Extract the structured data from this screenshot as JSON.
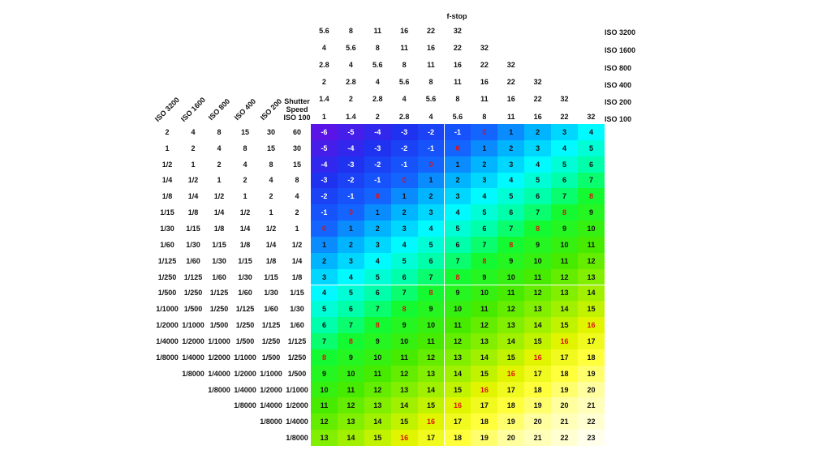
{
  "top": {
    "title": "f-stop",
    "rows": [
      {
        "label": "ISO 3200",
        "values": [
          "5.6",
          "8",
          "11",
          "16",
          "22",
          "32"
        ]
      },
      {
        "label": "ISO 1600",
        "values": [
          "4",
          "5.6",
          "8",
          "11",
          "16",
          "22",
          "32"
        ]
      },
      {
        "label": "ISO 800",
        "values": [
          "2.8",
          "4",
          "5.6",
          "8",
          "11",
          "16",
          "22",
          "32"
        ]
      },
      {
        "label": "ISO 400",
        "values": [
          "2",
          "2.8",
          "4",
          "5.6",
          "8",
          "11",
          "16",
          "22",
          "32"
        ]
      },
      {
        "label": "ISO 200",
        "values": [
          "1.4",
          "2",
          "2.8",
          "4",
          "5.6",
          "8",
          "11",
          "16",
          "22",
          "32"
        ]
      },
      {
        "label": "ISO 100",
        "values": [
          "1",
          "1.4",
          "2",
          "2.8",
          "4",
          "5.6",
          "8",
          "11",
          "16",
          "22",
          "32"
        ]
      }
    ]
  },
  "shutter": {
    "columns": [
      {
        "label": "ISO 3200",
        "values": [
          "2",
          "1",
          "1/2",
          "1/4",
          "1/8",
          "1/15",
          "1/30",
          "1/60",
          "1/125",
          "1/250",
          "1/500",
          "1/1000",
          "1/2000",
          "1/4000",
          "1/8000"
        ]
      },
      {
        "label": "ISO 1600",
        "values": [
          "4",
          "2",
          "1",
          "1/2",
          "1/4",
          "1/8",
          "1/15",
          "1/30",
          "1/60",
          "1/125",
          "1/250",
          "1/500",
          "1/1000",
          "1/2000",
          "1/4000",
          "1/8000"
        ]
      },
      {
        "label": "ISO 800",
        "values": [
          "8",
          "4",
          "2",
          "1",
          "1/2",
          "1/4",
          "1/8",
          "1/15",
          "1/30",
          "1/60",
          "1/125",
          "1/250",
          "1/500",
          "1/1000",
          "1/2000",
          "1/4000",
          "1/8000"
        ]
      },
      {
        "label": "ISO 400",
        "values": [
          "15",
          "8",
          "4",
          "2",
          "1",
          "1/2",
          "1/4",
          "1/8",
          "1/15",
          "1/30",
          "1/60",
          "1/125",
          "1/250",
          "1/500",
          "1/1000",
          "1/2000",
          "1/4000",
          "1/8000"
        ]
      },
      {
        "label": "ISO 200",
        "values": [
          "30",
          "15",
          "8",
          "4",
          "2",
          "1",
          "1/2",
          "1/4",
          "1/8",
          "1/15",
          "1/30",
          "1/60",
          "1/125",
          "1/250",
          "1/500",
          "1/1000",
          "1/2000",
          "1/4000",
          "1/8000"
        ]
      },
      {
        "label": "Shutter Speed ISO 100",
        "values": [
          "60",
          "30",
          "15",
          "8",
          "4",
          "2",
          "1",
          "1/2",
          "1/4",
          "1/8",
          "1/15",
          "1/30",
          "1/60",
          "1/125",
          "1/250",
          "1/500",
          "1/1000",
          "1/2000",
          "1/4000",
          "1/8000"
        ]
      }
    ]
  },
  "grid": {
    "highlight": {
      "values": [
        0,
        8,
        16
      ],
      "color": "#e01010"
    },
    "rows": [
      [
        -6,
        -5,
        -4,
        -3,
        -2,
        -1,
        0,
        1,
        2,
        3,
        4
      ],
      [
        -5,
        -4,
        -3,
        -2,
        -1,
        0,
        1,
        2,
        3,
        4,
        5
      ],
      [
        -4,
        -3,
        -2,
        -1,
        0,
        1,
        2,
        3,
        4,
        5,
        6
      ],
      [
        -3,
        -2,
        -1,
        0,
        1,
        2,
        3,
        4,
        5,
        6,
        7
      ],
      [
        -2,
        -1,
        0,
        1,
        2,
        3,
        4,
        5,
        6,
        7,
        8
      ],
      [
        -1,
        0,
        1,
        2,
        3,
        4,
        5,
        6,
        7,
        8,
        9
      ],
      [
        0,
        1,
        2,
        3,
        4,
        5,
        6,
        7,
        8,
        9,
        10
      ],
      [
        1,
        2,
        3,
        4,
        5,
        6,
        7,
        8,
        9,
        10,
        11
      ],
      [
        2,
        3,
        4,
        5,
        6,
        7,
        8,
        9,
        10,
        11,
        12
      ],
      [
        3,
        4,
        5,
        6,
        7,
        8,
        9,
        10,
        11,
        12,
        13
      ],
      [
        4,
        5,
        6,
        7,
        8,
        9,
        10,
        11,
        12,
        13,
        14
      ],
      [
        5,
        6,
        7,
        8,
        9,
        10,
        11,
        12,
        13,
        14,
        15
      ],
      [
        6,
        7,
        8,
        9,
        10,
        11,
        12,
        13,
        14,
        15,
        16
      ],
      [
        7,
        8,
        9,
        10,
        11,
        12,
        13,
        14,
        15,
        16,
        17
      ],
      [
        8,
        9,
        10,
        11,
        12,
        13,
        14,
        15,
        16,
        17,
        18
      ],
      [
        9,
        10,
        11,
        12,
        13,
        14,
        15,
        16,
        17,
        18,
        19
      ],
      [
        10,
        11,
        12,
        13,
        14,
        15,
        16,
        17,
        18,
        19,
        20
      ],
      [
        11,
        12,
        13,
        14,
        15,
        16,
        17,
        18,
        19,
        20,
        21
      ],
      [
        12,
        13,
        14,
        15,
        16,
        17,
        18,
        19,
        20,
        21,
        22
      ],
      [
        13,
        14,
        15,
        16,
        17,
        18,
        19,
        20,
        21,
        22,
        23
      ]
    ]
  }
}
